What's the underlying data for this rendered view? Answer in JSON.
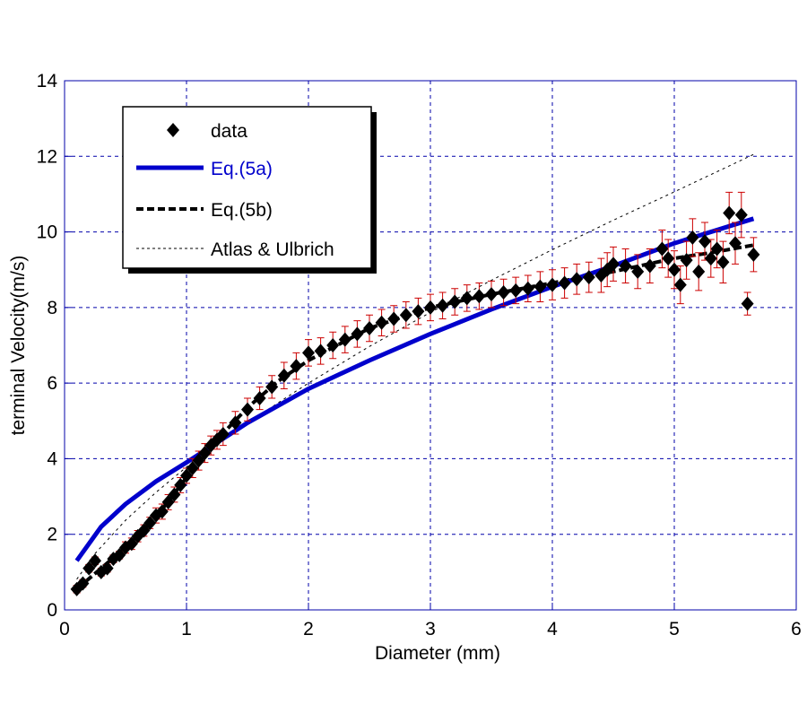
{
  "chart_data": {
    "type": "scatter",
    "title": "",
    "xlabel": "Diameter (mm)",
    "ylabel": "terminal Velocity(m/s)",
    "xlim": [
      0,
      6
    ],
    "ylim": [
      0,
      14
    ],
    "xticks": [
      "0",
      "1",
      "2",
      "3",
      "4",
      "5",
      "6"
    ],
    "yticks": [
      "0",
      "2",
      "4",
      "6",
      "8",
      "10",
      "12",
      "14"
    ],
    "grid": true,
    "legend_position": "top-left",
    "colors": {
      "axis": "#0000aa",
      "data": "#000000",
      "eq5a": "#0000cc",
      "errorbar": "#cc0000"
    },
    "series": [
      {
        "name": "data",
        "kind": "points-with-errorbars",
        "x": [
          0.1,
          0.15,
          0.2,
          0.25,
          0.3,
          0.35,
          0.4,
          0.45,
          0.5,
          0.55,
          0.6,
          0.65,
          0.7,
          0.75,
          0.8,
          0.85,
          0.9,
          0.95,
          1.0,
          1.05,
          1.1,
          1.15,
          1.2,
          1.25,
          1.3,
          1.4,
          1.5,
          1.6,
          1.7,
          1.8,
          1.9,
          2.0,
          2.1,
          2.2,
          2.3,
          2.4,
          2.5,
          2.6,
          2.7,
          2.8,
          2.9,
          3.0,
          3.1,
          3.2,
          3.3,
          3.4,
          3.5,
          3.6,
          3.7,
          3.8,
          3.9,
          4.0,
          4.1,
          4.2,
          4.3,
          4.4,
          4.45,
          4.5,
          4.6,
          4.7,
          4.8,
          4.9,
          4.95,
          5.0,
          5.05,
          5.1,
          5.15,
          5.2,
          5.25,
          5.3,
          5.35,
          5.4,
          5.45,
          5.5,
          5.55,
          5.6,
          5.65
        ],
        "y": [
          0.55,
          0.7,
          1.1,
          1.3,
          1.0,
          1.1,
          1.35,
          1.45,
          1.65,
          1.75,
          1.95,
          2.1,
          2.3,
          2.5,
          2.6,
          2.85,
          3.05,
          3.3,
          3.55,
          3.75,
          3.95,
          4.15,
          4.35,
          4.5,
          4.65,
          4.95,
          5.3,
          5.6,
          5.9,
          6.2,
          6.45,
          6.8,
          6.85,
          7.0,
          7.15,
          7.3,
          7.45,
          7.6,
          7.7,
          7.8,
          7.9,
          8.0,
          8.05,
          8.15,
          8.25,
          8.3,
          8.35,
          8.4,
          8.45,
          8.5,
          8.55,
          8.6,
          8.65,
          8.75,
          8.8,
          8.85,
          9.0,
          9.15,
          9.1,
          8.95,
          9.1,
          9.55,
          9.3,
          9.0,
          8.6,
          9.25,
          9.85,
          8.95,
          9.75,
          9.3,
          9.55,
          9.2,
          10.5,
          9.7,
          10.45,
          8.1,
          9.4
        ],
        "err": [
          0.1,
          0.1,
          0.1,
          0.1,
          0.1,
          0.1,
          0.1,
          0.1,
          0.15,
          0.15,
          0.15,
          0.15,
          0.15,
          0.2,
          0.2,
          0.2,
          0.2,
          0.2,
          0.2,
          0.25,
          0.25,
          0.25,
          0.25,
          0.25,
          0.3,
          0.3,
          0.3,
          0.3,
          0.3,
          0.35,
          0.35,
          0.35,
          0.35,
          0.35,
          0.35,
          0.35,
          0.35,
          0.35,
          0.35,
          0.35,
          0.35,
          0.35,
          0.35,
          0.35,
          0.35,
          0.35,
          0.35,
          0.35,
          0.35,
          0.35,
          0.4,
          0.4,
          0.4,
          0.4,
          0.4,
          0.45,
          0.45,
          0.45,
          0.45,
          0.45,
          0.45,
          0.5,
          0.5,
          0.5,
          0.5,
          0.5,
          0.5,
          0.5,
          0.5,
          0.5,
          0.5,
          0.55,
          0.55,
          0.55,
          0.6,
          0.3,
          0.45
        ]
      },
      {
        "name": "Eq.(5a)",
        "kind": "line",
        "x": [
          0.1,
          0.3,
          0.5,
          0.75,
          1.0,
          1.5,
          2.0,
          2.5,
          3.0,
          3.5,
          4.0,
          4.5,
          5.0,
          5.65
        ],
        "y": [
          1.3,
          2.2,
          2.8,
          3.4,
          3.9,
          4.95,
          5.85,
          6.6,
          7.3,
          7.95,
          8.55,
          9.1,
          9.7,
          10.35
        ]
      },
      {
        "name": "Eq.(5b)",
        "kind": "dashed",
        "x": [
          0.1,
          0.3,
          0.5,
          0.75,
          1.0,
          1.25,
          1.5,
          1.75,
          2.0,
          2.5,
          3.0,
          3.5,
          4.0,
          4.5,
          5.0,
          5.3,
          5.65
        ],
        "y": [
          0.55,
          1.1,
          1.65,
          2.45,
          3.5,
          4.5,
          5.35,
          6.05,
          6.6,
          7.45,
          8.0,
          8.35,
          8.65,
          8.95,
          9.3,
          9.45,
          9.65
        ]
      },
      {
        "name": "Atlas & Ulbrich",
        "kind": "dotted",
        "x": [
          0.1,
          0.25,
          0.5,
          0.75,
          1.0,
          1.5,
          2.0,
          2.5,
          3.0,
          3.5,
          4.0,
          4.5,
          5.0,
          5.65
        ],
        "y": [
          0.81,
          1.49,
          2.37,
          3.11,
          3.78,
          4.95,
          6.0,
          6.97,
          7.87,
          8.72,
          9.53,
          10.31,
          11.06,
          12.05
        ]
      }
    ]
  }
}
